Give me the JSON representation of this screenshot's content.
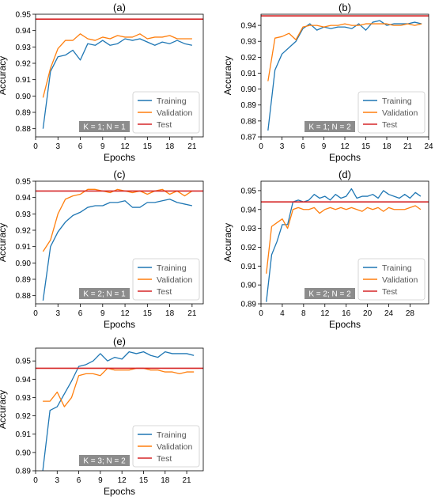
{
  "chart_data": [
    {
      "type": "line",
      "title": "(a)",
      "xlabel": "Epochs",
      "ylabel": "Accuracy",
      "xlim": [
        0,
        22.5
      ],
      "ylim": [
        0.875,
        0.95
      ],
      "xticks": [
        0,
        3,
        6,
        9,
        12,
        15,
        18,
        21
      ],
      "yticks": [
        0.88,
        0.89,
        0.9,
        0.91,
        0.92,
        0.93,
        0.94,
        0.95
      ],
      "ytick_labels": [
        "0.88",
        "0.89",
        "0.90",
        "0.91",
        "0.92",
        "0.93",
        "0.94",
        "0.95"
      ],
      "badge": "K = 1; N = 1",
      "legend_position": "bottom-right",
      "series": [
        {
          "name": "Training",
          "color": "#1f77b4",
          "x": [
            1,
            2,
            3,
            4,
            5,
            6,
            7,
            8,
            9,
            10,
            11,
            12,
            13,
            14,
            15,
            16,
            17,
            18,
            19,
            20,
            21
          ],
          "y": [
            0.88,
            0.915,
            0.924,
            0.925,
            0.928,
            0.922,
            0.932,
            0.931,
            0.934,
            0.931,
            0.932,
            0.935,
            0.934,
            0.935,
            0.933,
            0.931,
            0.933,
            0.932,
            0.934,
            0.932,
            0.931
          ]
        },
        {
          "name": "Validation",
          "color": "#ff7f0e",
          "x": [
            1,
            2,
            3,
            4,
            5,
            6,
            7,
            8,
            9,
            10,
            11,
            12,
            13,
            14,
            15,
            16,
            17,
            18,
            19,
            20,
            21
          ],
          "y": [
            0.899,
            0.917,
            0.929,
            0.934,
            0.934,
            0.938,
            0.935,
            0.934,
            0.936,
            0.935,
            0.937,
            0.936,
            0.936,
            0.938,
            0.935,
            0.936,
            0.936,
            0.937,
            0.935,
            0.935,
            0.935
          ]
        },
        {
          "name": "Test",
          "color": "#d62728",
          "hline": 0.947
        }
      ]
    },
    {
      "type": "line",
      "title": "(b)",
      "xlabel": "Epochs",
      "ylabel": "Accuracy",
      "xlim": [
        0,
        24
      ],
      "ylim": [
        0.87,
        0.947
      ],
      "xticks": [
        0,
        3,
        6,
        9,
        12,
        15,
        18,
        21,
        24
      ],
      "yticks": [
        0.87,
        0.88,
        0.89,
        0.9,
        0.91,
        0.92,
        0.93,
        0.94
      ],
      "ytick_labels": [
        "0.87",
        "0.88",
        "0.89",
        "0.90",
        "0.91",
        "0.92",
        "0.93",
        "0.94"
      ],
      "badge": "K = 1; N = 2",
      "legend_position": "bottom-right",
      "series": [
        {
          "name": "Training",
          "color": "#1f77b4",
          "x": [
            1,
            2,
            3,
            4,
            5,
            6,
            7,
            8,
            9,
            10,
            11,
            12,
            13,
            14,
            15,
            16,
            17,
            18,
            19,
            20,
            21,
            22,
            23
          ],
          "y": [
            0.874,
            0.912,
            0.922,
            0.926,
            0.93,
            0.938,
            0.941,
            0.937,
            0.939,
            0.938,
            0.939,
            0.939,
            0.938,
            0.941,
            0.937,
            0.942,
            0.943,
            0.94,
            0.941,
            0.941,
            0.941,
            0.942,
            0.941
          ]
        },
        {
          "name": "Validation",
          "color": "#ff7f0e",
          "x": [
            1,
            2,
            3,
            4,
            5,
            6,
            7,
            8,
            9,
            10,
            11,
            12,
            13,
            14,
            15,
            16,
            17,
            18,
            19,
            20,
            21,
            22,
            23
          ],
          "y": [
            0.905,
            0.932,
            0.933,
            0.935,
            0.931,
            0.939,
            0.94,
            0.94,
            0.939,
            0.94,
            0.94,
            0.941,
            0.94,
            0.94,
            0.941,
            0.941,
            0.941,
            0.941,
            0.94,
            0.94,
            0.941,
            0.94,
            0.941
          ]
        },
        {
          "name": "Test",
          "color": "#d62728",
          "hline": 0.946
        }
      ]
    },
    {
      "type": "line",
      "title": "(c)",
      "xlabel": "Epochs",
      "ylabel": "Accuracy",
      "xlim": [
        0,
        22.5
      ],
      "ylim": [
        0.875,
        0.95
      ],
      "xticks": [
        0,
        3,
        6,
        9,
        12,
        15,
        18,
        21
      ],
      "yticks": [
        0.88,
        0.89,
        0.9,
        0.91,
        0.92,
        0.93,
        0.94,
        0.95
      ],
      "ytick_labels": [
        "0.88",
        "0.89",
        "0.90",
        "0.91",
        "0.92",
        "0.93",
        "0.94",
        "0.95"
      ],
      "badge": "K = 2; N = 1",
      "legend_position": "bottom-right",
      "series": [
        {
          "name": "Training",
          "color": "#1f77b4",
          "x": [
            1,
            2,
            3,
            4,
            5,
            6,
            7,
            8,
            9,
            10,
            11,
            12,
            13,
            14,
            15,
            16,
            17,
            18,
            19,
            20,
            21
          ],
          "y": [
            0.877,
            0.91,
            0.919,
            0.925,
            0.929,
            0.931,
            0.934,
            0.935,
            0.935,
            0.937,
            0.937,
            0.938,
            0.934,
            0.934,
            0.937,
            0.937,
            0.938,
            0.939,
            0.937,
            0.936,
            0.935
          ]
        },
        {
          "name": "Validation",
          "color": "#ff7f0e",
          "x": [
            1,
            2,
            3,
            4,
            5,
            6,
            7,
            8,
            9,
            10,
            11,
            12,
            13,
            14,
            15,
            16,
            17,
            18,
            19,
            20,
            21
          ],
          "y": [
            0.907,
            0.914,
            0.93,
            0.939,
            0.941,
            0.942,
            0.945,
            0.945,
            0.944,
            0.943,
            0.945,
            0.944,
            0.943,
            0.944,
            0.942,
            0.944,
            0.945,
            0.942,
            0.944,
            0.941,
            0.944
          ]
        },
        {
          "name": "Test",
          "color": "#d62728",
          "hline": 0.944
        }
      ]
    },
    {
      "type": "line",
      "title": "(d)",
      "xlabel": "Epochs",
      "ylabel": "Accuracy",
      "xlim": [
        0,
        31.5
      ],
      "ylim": [
        0.89,
        0.955
      ],
      "xticks": [
        0,
        4,
        8,
        12,
        16,
        20,
        24,
        28
      ],
      "yticks": [
        0.89,
        0.9,
        0.91,
        0.92,
        0.93,
        0.94,
        0.95
      ],
      "ytick_labels": [
        "0.89",
        "0.90",
        "0.91",
        "0.92",
        "0.93",
        "0.94",
        "0.95"
      ],
      "badge": "K = 2; N = 2",
      "legend_position": "bottom-right",
      "series": [
        {
          "name": "Training",
          "color": "#1f77b4",
          "x": [
            1,
            2,
            3,
            4,
            5,
            6,
            7,
            8,
            9,
            10,
            11,
            12,
            13,
            14,
            15,
            16,
            17,
            18,
            19,
            20,
            21,
            22,
            23,
            24,
            25,
            26,
            27,
            28,
            29,
            30
          ],
          "y": [
            0.891,
            0.916,
            0.923,
            0.932,
            0.932,
            0.944,
            0.945,
            0.944,
            0.945,
            0.948,
            0.946,
            0.947,
            0.945,
            0.948,
            0.946,
            0.947,
            0.951,
            0.946,
            0.947,
            0.947,
            0.948,
            0.946,
            0.95,
            0.948,
            0.947,
            0.946,
            0.948,
            0.946,
            0.949,
            0.947
          ]
        },
        {
          "name": "Validation",
          "color": "#ff7f0e",
          "x": [
            1,
            2,
            3,
            4,
            5,
            6,
            7,
            8,
            9,
            10,
            11,
            12,
            13,
            14,
            15,
            16,
            17,
            18,
            19,
            20,
            21,
            22,
            23,
            24,
            25,
            26,
            27,
            28,
            29,
            30
          ],
          "y": [
            0.906,
            0.931,
            0.933,
            0.935,
            0.93,
            0.94,
            0.941,
            0.94,
            0.94,
            0.941,
            0.938,
            0.94,
            0.941,
            0.94,
            0.941,
            0.94,
            0.941,
            0.94,
            0.939,
            0.941,
            0.94,
            0.941,
            0.939,
            0.941,
            0.94,
            0.94,
            0.94,
            0.941,
            0.942,
            0.94
          ]
        },
        {
          "name": "Test",
          "color": "#d62728",
          "hline": 0.944
        }
      ]
    },
    {
      "type": "line",
      "title": "(e)",
      "xlabel": "Epochs",
      "ylabel": "Accuracy",
      "xlim": [
        0,
        23.3
      ],
      "ylim": [
        0.89,
        0.957
      ],
      "xticks": [
        0,
        3,
        6,
        9,
        12,
        15,
        18,
        21
      ],
      "yticks": [
        0.89,
        0.9,
        0.91,
        0.92,
        0.93,
        0.94,
        0.95
      ],
      "ytick_labels": [
        "0.89",
        "0.90",
        "0.91",
        "0.92",
        "0.93",
        "0.94",
        "0.95"
      ],
      "badge": "K = 3; N = 2",
      "legend_position": "bottom-right",
      "series": [
        {
          "name": "Training",
          "color": "#1f77b4",
          "x": [
            1,
            2,
            3,
            4,
            5,
            6,
            7,
            8,
            9,
            10,
            11,
            12,
            13,
            14,
            15,
            16,
            17,
            18,
            19,
            20,
            21,
            22
          ],
          "y": [
            0.89,
            0.923,
            0.925,
            0.932,
            0.939,
            0.947,
            0.948,
            0.95,
            0.954,
            0.95,
            0.952,
            0.951,
            0.955,
            0.954,
            0.955,
            0.953,
            0.952,
            0.955,
            0.954,
            0.954,
            0.954,
            0.953
          ]
        },
        {
          "name": "Validation",
          "color": "#ff7f0e",
          "x": [
            1,
            2,
            3,
            4,
            5,
            6,
            7,
            8,
            9,
            10,
            11,
            12,
            13,
            14,
            15,
            16,
            17,
            18,
            19,
            20,
            21,
            22
          ],
          "y": [
            0.928,
            0.928,
            0.933,
            0.925,
            0.93,
            0.942,
            0.943,
            0.943,
            0.942,
            0.946,
            0.945,
            0.945,
            0.945,
            0.946,
            0.946,
            0.945,
            0.945,
            0.944,
            0.944,
            0.943,
            0.944,
            0.944
          ]
        },
        {
          "name": "Test",
          "color": "#d62728",
          "hline": 0.946
        }
      ]
    }
  ]
}
